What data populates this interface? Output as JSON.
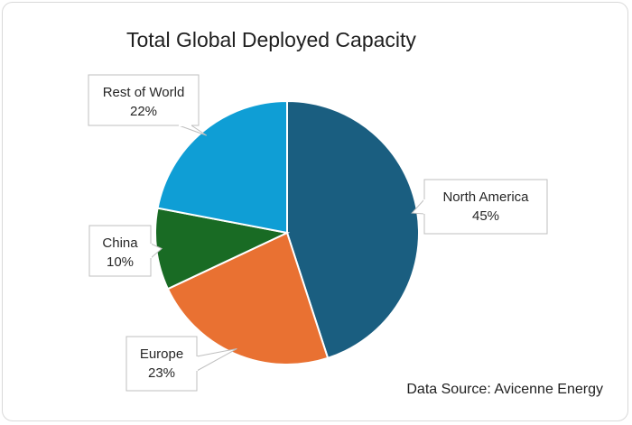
{
  "chart_data": {
    "type": "pie",
    "title": "Total Global Deployed Capacity",
    "slices": [
      {
        "label": "North America",
        "value": 45,
        "value_label": "45%",
        "color": "#1a5e80"
      },
      {
        "label": "Europe",
        "value": 23,
        "value_label": "23%",
        "color": "#e97132"
      },
      {
        "label": "China",
        "value": 10,
        "value_label": "10%",
        "color": "#196b24"
      },
      {
        "label": "Rest of World",
        "value": 22,
        "value_label": "22%",
        "color": "#0f9ed5"
      }
    ],
    "source": "Data Source: Avicenne Energy"
  }
}
